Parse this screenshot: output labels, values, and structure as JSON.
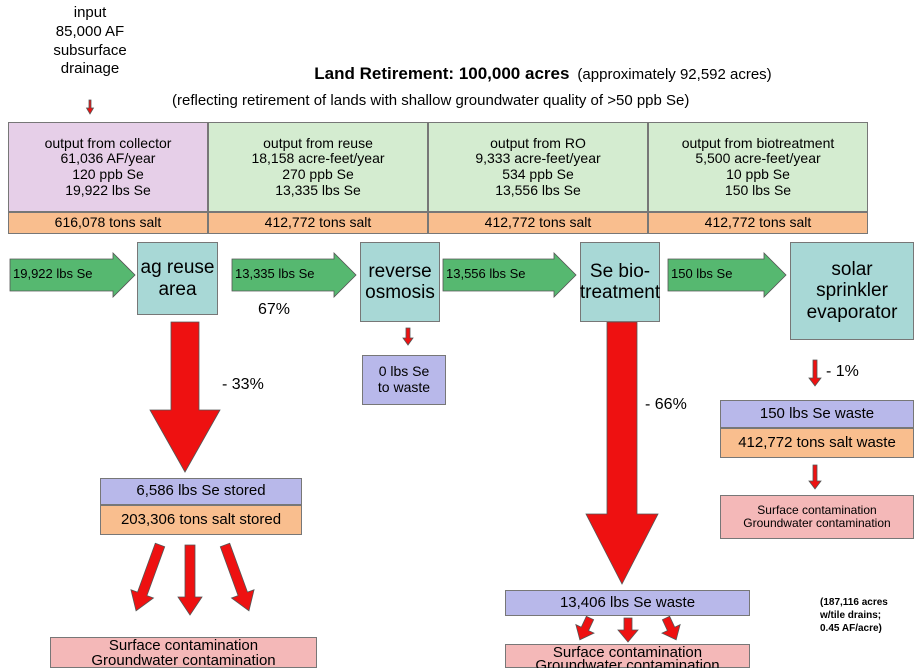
{
  "input": [
    "input",
    "85,000 AF",
    "subsurface",
    "drainage"
  ],
  "title": {
    "main": "Land Retirement: 100,000 acres",
    "approx": "(approximately 92,592 acres)",
    "subtitle": "(reflecting retirement of lands with shallow groundwater quality of >50 ppb Se)"
  },
  "table": [
    {
      "lines": [
        "output from collector",
        "61,036 AF/year",
        "120 ppb Se",
        "19,922 lbs Se"
      ],
      "salt": "616,078 tons salt"
    },
    {
      "lines": [
        "output from reuse",
        "18,158 acre-feet/year",
        "270 ppb Se",
        "13,335 lbs Se"
      ],
      "salt": "412,772 tons salt"
    },
    {
      "lines": [
        "output from RO",
        "9,333 acre-feet/year",
        "534 ppb Se",
        "13,556 lbs Se"
      ],
      "salt": "412,772 tons salt"
    },
    {
      "lines": [
        "output from biotreatment",
        "5,500 acre-feet/year",
        "10 ppb Se",
        "150 lbs Se"
      ],
      "salt": "412,772 tons salt"
    }
  ],
  "inflows": [
    "19,922 lbs Se",
    "13,335 lbs Se",
    "13,556 lbs Se",
    "150 lbs Se"
  ],
  "stages": [
    [
      "ag reuse",
      "area"
    ],
    [
      "reverse",
      "osmosis"
    ],
    [
      "Se bio-",
      "treatment"
    ],
    [
      "solar",
      "sprinkler",
      "evaporator"
    ]
  ],
  "reuse_pct": "67%",
  "ro_waste": [
    "0 lbs Se",
    "to waste"
  ],
  "reuse_loss": "- 33%",
  "reuse_store": {
    "se": "6,586 lbs Se stored",
    "salt": "203,306 tons salt stored"
  },
  "reuse_contam": [
    "Surface contamination",
    "Groundwater contamination"
  ],
  "bio_loss": "- 66%",
  "bio_waste": "13,406 lbs Se waste",
  "bio_contam": [
    "Surface contamination",
    "Groundwater contamination"
  ],
  "evap_loss": "- 1%",
  "evap_waste": {
    "se": "150 lbs Se waste",
    "salt": "412,772 tons salt waste"
  },
  "evap_contam": [
    "Surface contamination",
    "Groundwater contamination"
  ],
  "footnote": [
    "(187,116 acres",
    "w/tile drains;",
    "0.45 AF/acre)"
  ]
}
